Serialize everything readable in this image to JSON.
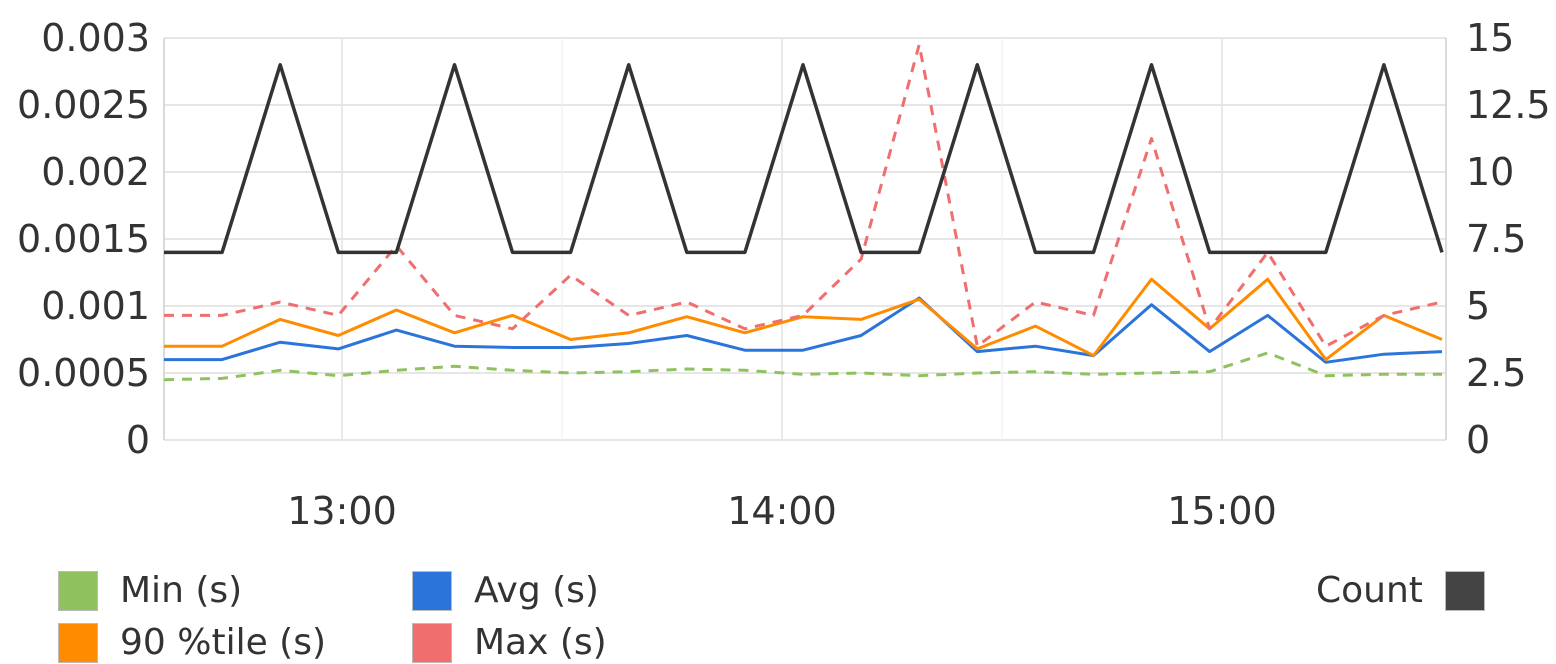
{
  "chart_data": {
    "type": "line",
    "title": "",
    "xlabel": "",
    "ylabel": "",
    "x": [
      "12:45",
      "12:52",
      "12:59",
      "13:07",
      "13:14",
      "13:22",
      "13:29",
      "13:37",
      "13:44",
      "13:52",
      "13:59",
      "14:07",
      "14:14",
      "14:22",
      "14:29",
      "14:37",
      "14:44",
      "14:52",
      "14:59",
      "15:07",
      "15:14",
      "15:22",
      "15:28"
    ],
    "x_ticks": [
      "13:00",
      "14:00",
      "15:00"
    ],
    "y_left_ticks": [
      "0",
      "0.0005",
      "0.001",
      "0.0015",
      "0.002",
      "0.0025",
      "0.003"
    ],
    "y_right_ticks": [
      "0",
      "2.5",
      "5",
      "7.5",
      "10",
      "12.5",
      "15"
    ],
    "ylim_left": [
      0,
      0.003
    ],
    "ylim_right": [
      0,
      15
    ],
    "grid": true,
    "series": [
      {
        "name": "Min (s)",
        "axis": "left",
        "color": "#8fc25e",
        "style": "dashed",
        "values": [
          0.00045,
          0.00046,
          0.00052,
          0.00048,
          0.00052,
          0.00055,
          0.00052,
          0.0005,
          0.00051,
          0.00053,
          0.00052,
          0.00049,
          0.0005,
          0.00048,
          0.0005,
          0.00051,
          0.00049,
          0.0005,
          0.00051,
          0.00065,
          0.00048,
          0.00049,
          0.00049
        ]
      },
      {
        "name": "Avg (s)",
        "axis": "left",
        "color": "#2b74d9",
        "style": "solid",
        "values": [
          0.0006,
          0.0006,
          0.00073,
          0.00068,
          0.00082,
          0.0007,
          0.00069,
          0.00069,
          0.00072,
          0.00078,
          0.00067,
          0.00067,
          0.00078,
          0.00106,
          0.00066,
          0.0007,
          0.00063,
          0.00101,
          0.00066,
          0.00093,
          0.00058,
          0.00064,
          0.00066
        ]
      },
      {
        "name": "90 %tile (s)",
        "axis": "left",
        "color": "#ff8c00",
        "style": "solid",
        "values": [
          0.0007,
          0.0007,
          0.0009,
          0.00078,
          0.00097,
          0.0008,
          0.00093,
          0.00075,
          0.0008,
          0.00092,
          0.0008,
          0.00092,
          0.0009,
          0.00105,
          0.00068,
          0.00085,
          0.00063,
          0.0012,
          0.00083,
          0.0012,
          0.0006,
          0.00093,
          0.00075
        ]
      },
      {
        "name": "Max (s)",
        "axis": "left",
        "color": "#f06e6e",
        "style": "dashed",
        "values": [
          0.00093,
          0.00093,
          0.00103,
          0.00093,
          0.00145,
          0.00093,
          0.00083,
          0.00123,
          0.00093,
          0.00103,
          0.00083,
          0.00093,
          0.00135,
          0.00295,
          0.0007,
          0.00103,
          0.00093,
          0.00225,
          0.00083,
          0.0014,
          0.0007,
          0.00093,
          0.00103
        ]
      },
      {
        "name": "Count",
        "axis": "right",
        "color": "#333333",
        "style": "solid",
        "values": [
          7,
          7,
          14,
          7,
          7,
          14,
          7,
          7,
          14,
          7,
          7,
          14,
          7,
          7,
          14,
          7,
          7,
          14,
          7,
          7,
          7,
          14,
          7
        ]
      }
    ],
    "legend": [
      {
        "label": "Min (s)",
        "color": "#8fc25e"
      },
      {
        "label": "Avg (s)",
        "color": "#2b74d9"
      },
      {
        "label": "90 %tile (s)",
        "color": "#ff8c00"
      },
      {
        "label": "Max (s)",
        "color": "#f06e6e"
      },
      {
        "label": "Count",
        "color": "#444444"
      }
    ]
  }
}
